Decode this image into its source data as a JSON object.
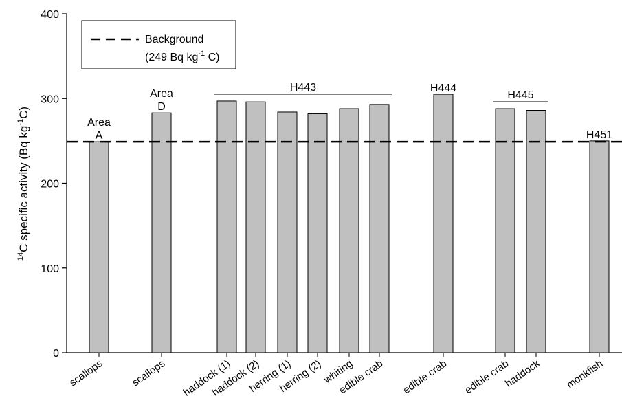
{
  "chart_data": {
    "type": "bar",
    "ylabel_parts": {
      "sup": "14",
      "main": "C specific activity (Bq kg",
      "exp": "-1",
      "end": "C)"
    },
    "ylim": [
      0,
      400
    ],
    "yticks": [
      0,
      100,
      200,
      300,
      400
    ],
    "bar_color": "#c0c0c0",
    "categories": [
      "scallops",
      "scallops",
      "haddock (1)",
      "haddock (2)",
      "herring (1)",
      "herring (2)",
      "whiting",
      "edible crab",
      "edible crab",
      "edible crab",
      "haddock",
      "monkfish"
    ],
    "values": [
      249,
      283,
      297,
      296,
      284,
      282,
      288,
      293,
      305,
      288,
      286,
      250
    ],
    "background": {
      "value": 249,
      "legend_line1": "Background",
      "legend_line2_prefix": "(249 Bq kg",
      "legend_line2_exp": "-1",
      "legend_line2_suffix": " C)"
    },
    "groups": [
      {
        "label_lines": [
          "Area",
          "A"
        ],
        "start": 0,
        "end": 0,
        "bracket": false
      },
      {
        "label_lines": [
          "Area",
          "D"
        ],
        "start": 1,
        "end": 1,
        "bracket": false
      },
      {
        "label_lines": [
          "H443"
        ],
        "start": 2,
        "end": 7,
        "bracket": true
      },
      {
        "label_lines": [
          "H444"
        ],
        "start": 8,
        "end": 8,
        "bracket": false
      },
      {
        "label_lines": [
          "H445"
        ],
        "start": 9,
        "end": 10,
        "bracket": true
      },
      {
        "label_lines": [
          "H451"
        ],
        "start": 11,
        "end": 11,
        "bracket": false
      }
    ]
  }
}
